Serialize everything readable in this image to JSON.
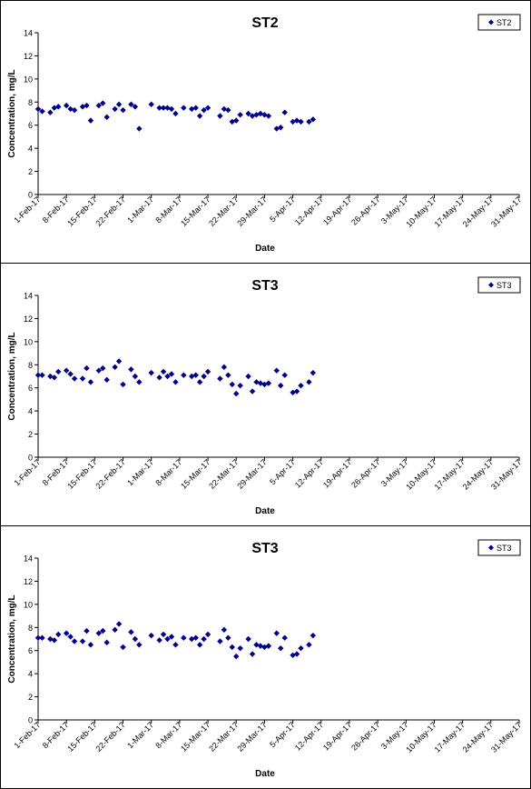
{
  "chart_data": [
    {
      "type": "scatter",
      "title": "ST2",
      "xlabel": "Date",
      "ylabel": "Concentration, mg/L",
      "ylim": [
        0,
        14
      ],
      "yticks": [
        0,
        2,
        4,
        6,
        8,
        10,
        12,
        14
      ],
      "xlim": [
        "2017-02-01",
        "2017-05-31"
      ],
      "xtick_labels": [
        "1-Feb-17",
        "8-Feb-17",
        "15-Feb-17",
        "22-Feb-17",
        "1-Mar-17",
        "8-Mar-17",
        "15-Mar-17",
        "22-Mar-17",
        "29-Mar-17",
        "5-Apr-17",
        "12-Apr-17",
        "19-Apr-17",
        "26-Apr-17",
        "3-May-17",
        "10-May-17",
        "17-May-17",
        "24-May-17",
        "31-May-17"
      ],
      "grid": false,
      "legend": "top-right",
      "color": "#00008B",
      "series": [
        {
          "name": "ST2",
          "points": [
            [
              "2017-02-01",
              7.4
            ],
            [
              "2017-02-02",
              7.2
            ],
            [
              "2017-02-04",
              7.1
            ],
            [
              "2017-02-05",
              7.5
            ],
            [
              "2017-02-06",
              7.6
            ],
            [
              "2017-02-08",
              7.7
            ],
            [
              "2017-02-09",
              7.4
            ],
            [
              "2017-02-10",
              7.3
            ],
            [
              "2017-02-12",
              7.6
            ],
            [
              "2017-02-13",
              7.7
            ],
            [
              "2017-02-14",
              6.4
            ],
            [
              "2017-02-16",
              7.7
            ],
            [
              "2017-02-17",
              7.9
            ],
            [
              "2017-02-18",
              6.7
            ],
            [
              "2017-02-20",
              7.4
            ],
            [
              "2017-02-21",
              7.8
            ],
            [
              "2017-02-22",
              7.3
            ],
            [
              "2017-02-24",
              7.8
            ],
            [
              "2017-02-25",
              7.6
            ],
            [
              "2017-02-26",
              5.7
            ],
            [
              "2017-03-01",
              7.8
            ],
            [
              "2017-03-03",
              7.5
            ],
            [
              "2017-03-04",
              7.5
            ],
            [
              "2017-03-05",
              7.5
            ],
            [
              "2017-03-06",
              7.4
            ],
            [
              "2017-03-07",
              7.0
            ],
            [
              "2017-03-09",
              7.5
            ],
            [
              "2017-03-11",
              7.4
            ],
            [
              "2017-03-12",
              7.5
            ],
            [
              "2017-03-13",
              6.8
            ],
            [
              "2017-03-14",
              7.3
            ],
            [
              "2017-03-15",
              7.5
            ],
            [
              "2017-03-18",
              6.8
            ],
            [
              "2017-03-19",
              7.4
            ],
            [
              "2017-03-20",
              7.3
            ],
            [
              "2017-03-21",
              6.3
            ],
            [
              "2017-03-22",
              6.4
            ],
            [
              "2017-03-23",
              6.9
            ],
            [
              "2017-03-25",
              7.0
            ],
            [
              "2017-03-26",
              6.8
            ],
            [
              "2017-03-27",
              6.9
            ],
            [
              "2017-03-28",
              7.0
            ],
            [
              "2017-03-29",
              6.9
            ],
            [
              "2017-03-30",
              6.8
            ],
            [
              "2017-04-01",
              5.7
            ],
            [
              "2017-04-02",
              5.8
            ],
            [
              "2017-04-03",
              7.1
            ],
            [
              "2017-04-05",
              6.3
            ],
            [
              "2017-04-06",
              6.4
            ],
            [
              "2017-04-07",
              6.3
            ],
            [
              "2017-04-09",
              6.3
            ],
            [
              "2017-04-10",
              6.5
            ]
          ]
        }
      ]
    },
    {
      "type": "scatter",
      "title": "ST3",
      "xlabel": "Date",
      "ylabel": "Concentration, mg/L",
      "ylim": [
        0,
        14
      ],
      "yticks": [
        0,
        2,
        4,
        6,
        8,
        10,
        12,
        14
      ],
      "xlim": [
        "2017-02-01",
        "2017-05-31"
      ],
      "xtick_labels": [
        "1-Feb-17",
        "8-Feb-17",
        "15-Feb-17",
        "22-Feb-17",
        "1-Mar-17",
        "8-Mar-17",
        "15-Mar-17",
        "22-Mar-17",
        "29-Mar-17",
        "5-Apr-17",
        "12-Apr-17",
        "19-Apr-17",
        "26-Apr-17",
        "3-May-17",
        "10-May-17",
        "17-May-17",
        "24-May-17",
        "31-May-17"
      ],
      "grid": false,
      "legend": "top-right",
      "color": "#00008B",
      "series": [
        {
          "name": "ST3",
          "points": [
            [
              "2017-02-01",
              7.1
            ],
            [
              "2017-02-02",
              7.1
            ],
            [
              "2017-02-04",
              7.0
            ],
            [
              "2017-02-05",
              6.9
            ],
            [
              "2017-02-06",
              7.4
            ],
            [
              "2017-02-08",
              7.5
            ],
            [
              "2017-02-09",
              7.2
            ],
            [
              "2017-02-10",
              6.8
            ],
            [
              "2017-02-12",
              6.8
            ],
            [
              "2017-02-13",
              7.7
            ],
            [
              "2017-02-14",
              6.5
            ],
            [
              "2017-02-16",
              7.5
            ],
            [
              "2017-02-17",
              7.7
            ],
            [
              "2017-02-18",
              6.7
            ],
            [
              "2017-02-20",
              7.8
            ],
            [
              "2017-02-21",
              8.3
            ],
            [
              "2017-02-22",
              6.3
            ],
            [
              "2017-02-24",
              7.6
            ],
            [
              "2017-02-25",
              7.0
            ],
            [
              "2017-02-26",
              6.5
            ],
            [
              "2017-03-01",
              7.3
            ],
            [
              "2017-03-03",
              6.9
            ],
            [
              "2017-03-04",
              7.4
            ],
            [
              "2017-03-05",
              7.0
            ],
            [
              "2017-03-06",
              7.2
            ],
            [
              "2017-03-07",
              6.5
            ],
            [
              "2017-03-09",
              7.1
            ],
            [
              "2017-03-11",
              7.0
            ],
            [
              "2017-03-12",
              7.1
            ],
            [
              "2017-03-13",
              6.5
            ],
            [
              "2017-03-14",
              7.0
            ],
            [
              "2017-03-15",
              7.4
            ],
            [
              "2017-03-18",
              6.8
            ],
            [
              "2017-03-19",
              7.8
            ],
            [
              "2017-03-20",
              7.1
            ],
            [
              "2017-03-21",
              6.3
            ],
            [
              "2017-03-22",
              5.5
            ],
            [
              "2017-03-23",
              6.2
            ],
            [
              "2017-03-25",
              7.0
            ],
            [
              "2017-03-26",
              5.7
            ],
            [
              "2017-03-27",
              6.5
            ],
            [
              "2017-03-28",
              6.4
            ],
            [
              "2017-03-29",
              6.3
            ],
            [
              "2017-03-30",
              6.4
            ],
            [
              "2017-04-01",
              7.5
            ],
            [
              "2017-04-02",
              6.2
            ],
            [
              "2017-04-03",
              7.1
            ],
            [
              "2017-04-05",
              5.6
            ],
            [
              "2017-04-06",
              5.7
            ],
            [
              "2017-04-07",
              6.2
            ],
            [
              "2017-04-09",
              6.5
            ],
            [
              "2017-04-10",
              7.3
            ]
          ]
        }
      ]
    },
    {
      "type": "scatter",
      "title": "ST3",
      "xlabel": "Date",
      "ylabel": "Concentration, mg/L",
      "ylim": [
        0,
        14
      ],
      "yticks": [
        0,
        2,
        4,
        6,
        8,
        10,
        12,
        14
      ],
      "xlim": [
        "2017-02-01",
        "2017-05-31"
      ],
      "xtick_labels": [
        "1-Feb-17",
        "8-Feb-17",
        "15-Feb-17",
        "22-Feb-17",
        "1-Mar-17",
        "8-Mar-17",
        "15-Mar-17",
        "22-Mar-17",
        "29-Mar-17",
        "5-Apr-17",
        "12-Apr-17",
        "19-Apr-17",
        "26-Apr-17",
        "3-May-17",
        "10-May-17",
        "17-May-17",
        "24-May-17",
        "31-May-17"
      ],
      "grid": false,
      "legend": "top-right",
      "color": "#00008B",
      "series": [
        {
          "name": "ST3",
          "points": [
            [
              "2017-02-01",
              7.1
            ],
            [
              "2017-02-02",
              7.1
            ],
            [
              "2017-02-04",
              7.0
            ],
            [
              "2017-02-05",
              6.9
            ],
            [
              "2017-02-06",
              7.4
            ],
            [
              "2017-02-08",
              7.5
            ],
            [
              "2017-02-09",
              7.2
            ],
            [
              "2017-02-10",
              6.8
            ],
            [
              "2017-02-12",
              6.8
            ],
            [
              "2017-02-13",
              7.7
            ],
            [
              "2017-02-14",
              6.5
            ],
            [
              "2017-02-16",
              7.5
            ],
            [
              "2017-02-17",
              7.7
            ],
            [
              "2017-02-18",
              6.7
            ],
            [
              "2017-02-20",
              7.8
            ],
            [
              "2017-02-21",
              8.3
            ],
            [
              "2017-02-22",
              6.3
            ],
            [
              "2017-02-24",
              7.6
            ],
            [
              "2017-02-25",
              7.0
            ],
            [
              "2017-02-26",
              6.5
            ],
            [
              "2017-03-01",
              7.3
            ],
            [
              "2017-03-03",
              6.9
            ],
            [
              "2017-03-04",
              7.4
            ],
            [
              "2017-03-05",
              7.0
            ],
            [
              "2017-03-06",
              7.2
            ],
            [
              "2017-03-07",
              6.5
            ],
            [
              "2017-03-09",
              7.1
            ],
            [
              "2017-03-11",
              7.0
            ],
            [
              "2017-03-12",
              7.1
            ],
            [
              "2017-03-13",
              6.5
            ],
            [
              "2017-03-14",
              7.0
            ],
            [
              "2017-03-15",
              7.4
            ],
            [
              "2017-03-18",
              6.8
            ],
            [
              "2017-03-19",
              7.8
            ],
            [
              "2017-03-20",
              7.1
            ],
            [
              "2017-03-21",
              6.3
            ],
            [
              "2017-03-22",
              5.5
            ],
            [
              "2017-03-23",
              6.2
            ],
            [
              "2017-03-25",
              7.0
            ],
            [
              "2017-03-26",
              5.7
            ],
            [
              "2017-03-27",
              6.5
            ],
            [
              "2017-03-28",
              6.4
            ],
            [
              "2017-03-29",
              6.3
            ],
            [
              "2017-03-30",
              6.4
            ],
            [
              "2017-04-01",
              7.5
            ],
            [
              "2017-04-02",
              6.2
            ],
            [
              "2017-04-03",
              7.1
            ],
            [
              "2017-04-05",
              5.6
            ],
            [
              "2017-04-06",
              5.7
            ],
            [
              "2017-04-07",
              6.2
            ],
            [
              "2017-04-09",
              6.5
            ],
            [
              "2017-04-10",
              7.3
            ]
          ]
        }
      ]
    }
  ]
}
